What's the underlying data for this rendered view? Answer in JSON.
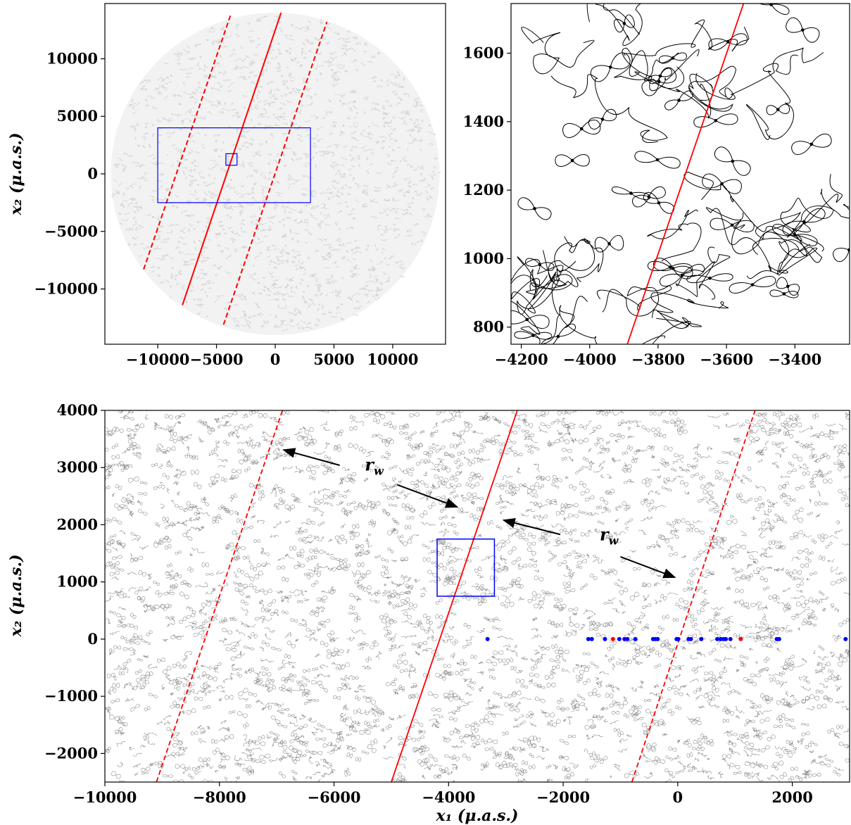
{
  "chart_data": [
    {
      "id": "panel_overview",
      "type": "line",
      "xlim": [
        -14500,
        14500
      ],
      "ylim": [
        -14800,
        14800
      ],
      "x_ticks": [
        -10000,
        -5000,
        0,
        5000,
        10000
      ],
      "x_tick_labels": [
        "−10000",
        "−5000",
        "0",
        "5000",
        "10000"
      ],
      "y_ticks": [
        -10000,
        -5000,
        0,
        5000,
        10000
      ],
      "y_tick_labels": [
        "−10000",
        "−5000",
        "0",
        "5000",
        "10000"
      ],
      "xlabel": "",
      "ylabel": "x₂ (μ.a.s.)",
      "caustic_region": {
        "center": [
          0,
          0
        ],
        "radius": 14000,
        "color": "#d0d0d0"
      },
      "series": [
        {
          "style": "solid",
          "color": "#ff0000",
          "points": [
            [
              -7900,
              -11400
            ],
            [
              500,
              14000
            ]
          ]
        },
        {
          "style": "dashed",
          "color": "#ff0000",
          "points": [
            [
              -11200,
              -8300
            ],
            [
              -3800,
              13800
            ]
          ]
        },
        {
          "style": "dashed",
          "color": "#ff0000",
          "points": [
            [
              -4400,
              -13100
            ],
            [
              4400,
              13200
            ]
          ]
        }
      ],
      "boxes": [
        {
          "x": [
            -10000,
            3000
          ],
          "y": [
            -2500,
            4000
          ],
          "color": "#0000ff"
        },
        {
          "x": [
            -4200,
            -3250
          ],
          "y": [
            750,
            1750
          ],
          "color": "#0000ff"
        }
      ]
    },
    {
      "id": "panel_zoom",
      "type": "line",
      "xlim": [
        -4230,
        -3240
      ],
      "ylim": [
        750,
        1745
      ],
      "x_ticks": [
        -4200,
        -4000,
        -3800,
        -3600,
        -3400
      ],
      "x_tick_labels": [
        "−4200",
        "−4000",
        "−3800",
        "−3600",
        "−3400"
      ],
      "y_ticks": [
        800,
        1000,
        1200,
        1400,
        1600
      ],
      "y_tick_labels": [
        "800",
        "1000",
        "1200",
        "1400",
        "1600"
      ],
      "xlabel": "",
      "ylabel": "",
      "caustic_color": "#000000",
      "series": [
        {
          "style": "solid",
          "color": "#ff0000",
          "points": [
            [
              -3890,
              750
            ],
            [
              -3550,
              1745
            ]
          ]
        }
      ]
    },
    {
      "id": "panel_wide",
      "type": "line",
      "xlim": [
        -10000,
        3000
      ],
      "ylim": [
        -2500,
        4000
      ],
      "x_ticks": [
        -10000,
        -8000,
        -6000,
        -4000,
        -2000,
        0,
        2000
      ],
      "x_tick_labels": [
        "−10000",
        "−8000",
        "−6000",
        "−4000",
        "−2000",
        "0",
        "2000"
      ],
      "y_ticks": [
        -2000,
        -1000,
        0,
        1000,
        2000,
        3000,
        4000
      ],
      "y_tick_labels": [
        "−2000",
        "−1000",
        "0",
        "1000",
        "2000",
        "3000",
        "4000"
      ],
      "xlabel": "x₁ (μ.a.s.)",
      "ylabel": "x₂ (μ.a.s.)",
      "caustic_color": "#888888",
      "series": [
        {
          "style": "solid",
          "color": "#ff0000",
          "points": [
            [
              -5000,
              -2500
            ],
            [
              -2800,
              4000
            ]
          ]
        },
        {
          "style": "dashed",
          "color": "#ff0000",
          "points": [
            [
              -9100,
              -2500
            ],
            [
              -6900,
              4000
            ]
          ]
        },
        {
          "style": "dashed",
          "color": "#ff0000",
          "points": [
            [
              -800,
              -2500
            ],
            [
              1350,
              4000
            ]
          ]
        }
      ],
      "boxes": [
        {
          "x": [
            -4200,
            -3200
          ],
          "y": [
            750,
            1750
          ],
          "color": "#0000ff"
        }
      ],
      "points": {
        "y": 0,
        "blue_x": [
          -3320,
          -1560,
          -1500,
          -1270,
          -1020,
          -930,
          -880,
          -740,
          -430,
          -390,
          -350,
          -20,
          10,
          190,
          230,
          410,
          690,
          750,
          800,
          840,
          920,
          1730,
          1770,
          2930
        ],
        "red_x": [
          -1130,
          1100
        ],
        "blue_color": "#0000ff",
        "red_color": "#ff0000"
      },
      "annotations": [
        {
          "text": "rw",
          "pos": [
            -5300,
            2950
          ],
          "arrows": [
            [
              [
                -5900,
                3040
              ],
              [
                -6880,
                3310
              ]
            ],
            [
              [
                -4900,
                2700
              ],
              [
                -3850,
                2310
              ]
            ]
          ]
        },
        {
          "text": "rw",
          "pos": [
            -1200,
            1730
          ],
          "arrows": [
            [
              [
                -2050,
                1830
              ],
              [
                -3040,
                2080
              ]
            ],
            [
              [
                -1000,
                1440
              ],
              [
                -50,
                1080
              ]
            ]
          ]
        }
      ]
    }
  ]
}
